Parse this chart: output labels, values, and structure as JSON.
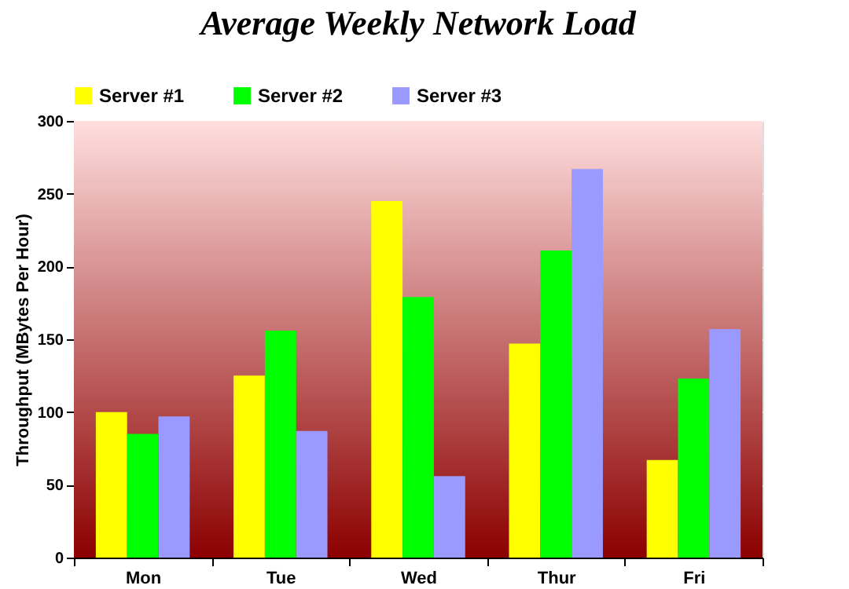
{
  "chart_data": {
    "type": "bar",
    "title": "Average Weekly Network Load",
    "ylabel": "Throughput (MBytes Per Hour)",
    "categories": [
      "Mon",
      "Tue",
      "Wed",
      "Thur",
      "Fri"
    ],
    "series": [
      {
        "name": "Server #1",
        "color": "#ffff00",
        "values": [
          100,
          125,
          245,
          147,
          67
        ]
      },
      {
        "name": "Server #2",
        "color": "#00ff00",
        "values": [
          85,
          156,
          179,
          211,
          123
        ]
      },
      {
        "name": "Server #3",
        "color": "#9999ff",
        "values": [
          97,
          87,
          56,
          267,
          157
        ]
      }
    ],
    "ylim": [
      0,
      300
    ],
    "yticks": [
      0,
      50,
      100,
      150,
      200,
      250,
      300
    ],
    "grid": "y",
    "legend": "top left"
  }
}
